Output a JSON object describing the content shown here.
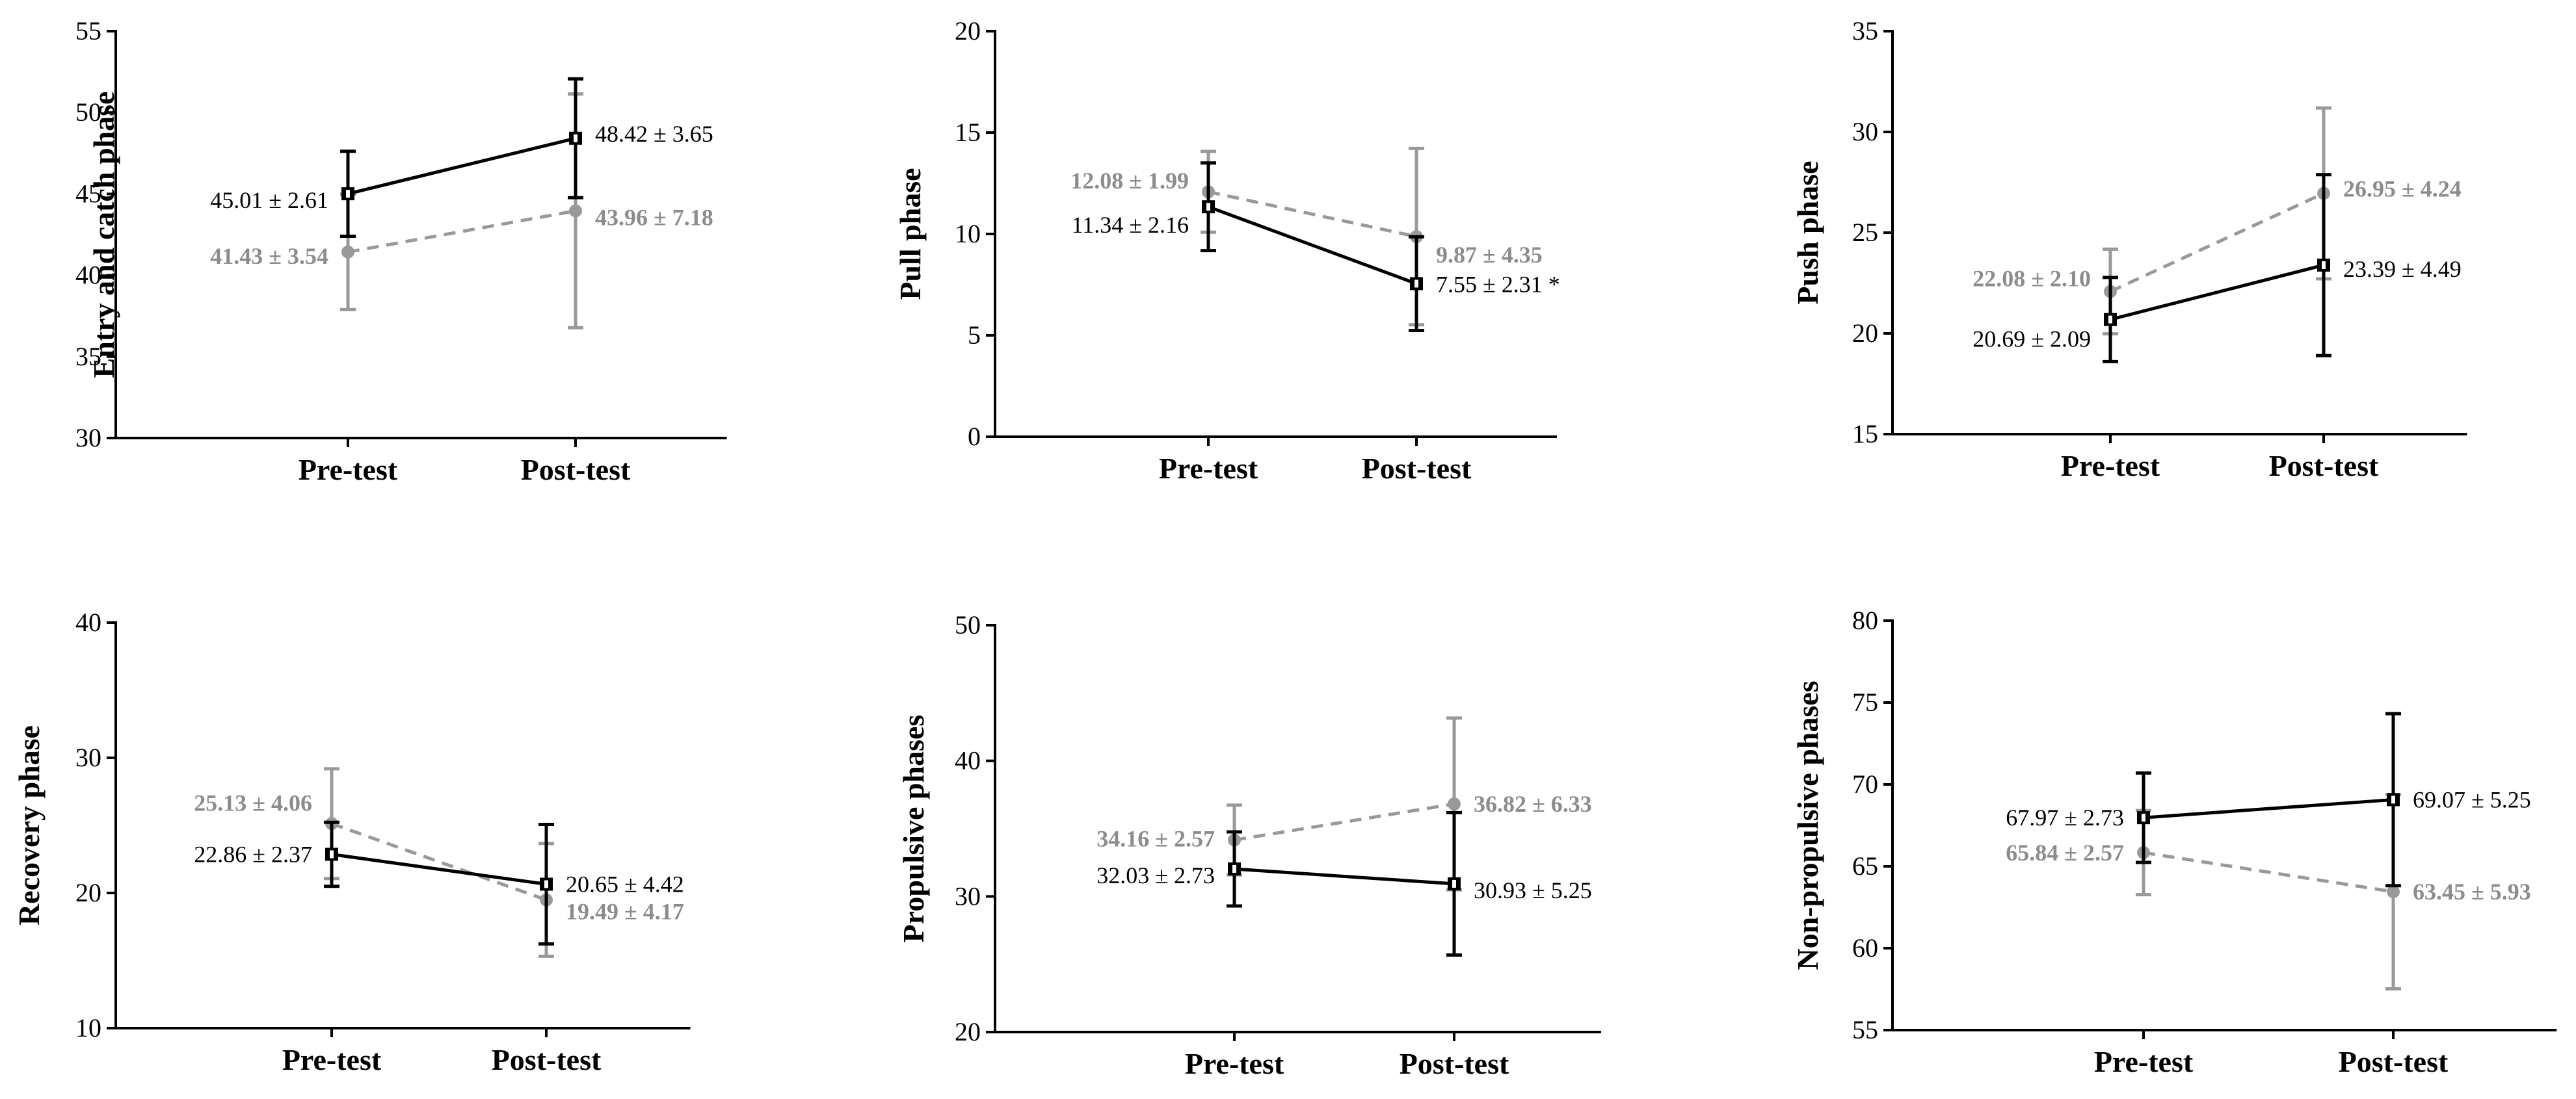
{
  "chart_data": [
    {
      "type": "line",
      "ylabel": "Entry and catch phase",
      "categories": [
        "Pre-test",
        "Post-test"
      ],
      "yticks": [
        "30",
        "35",
        "40",
        "45",
        "50",
        "55"
      ],
      "ylim": [
        30,
        55
      ],
      "series": [
        {
          "name": "black",
          "color": "#000000",
          "dashed": false,
          "marker": "square",
          "values": [
            45.01,
            48.42
          ],
          "errors": [
            2.61,
            3.65
          ],
          "labels": [
            "45.01 ± 2.61",
            "48.42 ± 3.65"
          ]
        },
        {
          "name": "gray",
          "color": "#999999",
          "dashed": true,
          "marker": "circle",
          "values": [
            41.43,
            43.96
          ],
          "errors": [
            3.54,
            7.18
          ],
          "labels": [
            "41.43 ± 3.54",
            "43.96 ± 7.18"
          ]
        }
      ]
    },
    {
      "type": "line",
      "ylabel": "Pull phase",
      "categories": [
        "Pre-test",
        "Post-test"
      ],
      "yticks": [
        "0",
        "5",
        "10",
        "15",
        "20"
      ],
      "ylim": [
        0,
        20
      ],
      "series": [
        {
          "name": "black",
          "color": "#000000",
          "dashed": false,
          "marker": "square",
          "values": [
            11.34,
            7.55
          ],
          "errors": [
            2.16,
            2.31
          ],
          "labels": [
            "11.34 ± 2.16",
            "7.55 ± 2.31 *"
          ]
        },
        {
          "name": "gray",
          "color": "#999999",
          "dashed": true,
          "marker": "circle",
          "values": [
            12.08,
            9.87
          ],
          "errors": [
            1.99,
            4.35
          ],
          "labels": [
            "12.08 ± 1.99",
            "9.87 ± 4.35"
          ]
        }
      ]
    },
    {
      "type": "line",
      "ylabel": "Push phase",
      "categories": [
        "Pre-test",
        "Post-test"
      ],
      "yticks": [
        "15",
        "20",
        "25",
        "30",
        "35"
      ],
      "ylim": [
        15,
        35
      ],
      "series": [
        {
          "name": "black",
          "color": "#000000",
          "dashed": false,
          "marker": "square",
          "values": [
            20.69,
            23.39
          ],
          "errors": [
            2.09,
            4.49
          ],
          "labels": [
            "20.69 ± 2.09",
            "23.39 ± 4.49"
          ]
        },
        {
          "name": "gray",
          "color": "#999999",
          "dashed": true,
          "marker": "circle",
          "values": [
            22.08,
            26.95
          ],
          "errors": [
            2.1,
            4.24
          ],
          "labels": [
            "22.08 ± 2.10",
            "26.95 ± 4.24"
          ]
        }
      ]
    },
    {
      "type": "line",
      "ylabel": "Recovery phase",
      "categories": [
        "Pre-test",
        "Post-test"
      ],
      "yticks": [
        "10",
        "20",
        "30",
        "40"
      ],
      "ylim": [
        10,
        40
      ],
      "series": [
        {
          "name": "black",
          "color": "#000000",
          "dashed": false,
          "marker": "square",
          "values": [
            22.86,
            20.65
          ],
          "errors": [
            2.37,
            4.42
          ],
          "labels": [
            "22.86 ± 2.37",
            "20.65 ± 4.42"
          ]
        },
        {
          "name": "gray",
          "color": "#999999",
          "dashed": true,
          "marker": "circle",
          "values": [
            25.13,
            19.49
          ],
          "errors": [
            4.06,
            4.17
          ],
          "labels": [
            "25.13 ± 4.06",
            "19.49 ± 4.17"
          ]
        }
      ]
    },
    {
      "type": "line",
      "ylabel": "Propulsive phases",
      "categories": [
        "Pre-test",
        "Post-test"
      ],
      "yticks": [
        "20",
        "30",
        "40",
        "50"
      ],
      "ylim": [
        20,
        50
      ],
      "series": [
        {
          "name": "black",
          "color": "#000000",
          "dashed": false,
          "marker": "square",
          "values": [
            32.03,
            30.93
          ],
          "errors": [
            2.73,
            5.25
          ],
          "labels": [
            "32.03 ± 2.73",
            "30.93 ± 5.25"
          ]
        },
        {
          "name": "gray",
          "color": "#999999",
          "dashed": true,
          "marker": "circle",
          "values": [
            34.16,
            36.82
          ],
          "errors": [
            2.57,
            6.33
          ],
          "labels": [
            "34.16 ± 2.57",
            "36.82 ± 6.33"
          ]
        }
      ]
    },
    {
      "type": "line",
      "ylabel": "Non-propulsive phases",
      "categories": [
        "Pre-test",
        "Post-test"
      ],
      "yticks": [
        "55",
        "60",
        "65",
        "70",
        "75",
        "80"
      ],
      "ylim": [
        55,
        80
      ],
      "series": [
        {
          "name": "black",
          "color": "#000000",
          "dashed": false,
          "marker": "square",
          "values": [
            67.97,
            69.07
          ],
          "errors": [
            2.73,
            5.25
          ],
          "labels": [
            "67.97 ± 2.73",
            "69.07 ± 5.25"
          ]
        },
        {
          "name": "gray",
          "color": "#999999",
          "dashed": true,
          "marker": "circle",
          "values": [
            65.84,
            63.45
          ],
          "errors": [
            2.57,
            5.93
          ],
          "labels": [
            "65.84 ± 2.57",
            "63.45 ± 5.93"
          ]
        }
      ]
    }
  ]
}
